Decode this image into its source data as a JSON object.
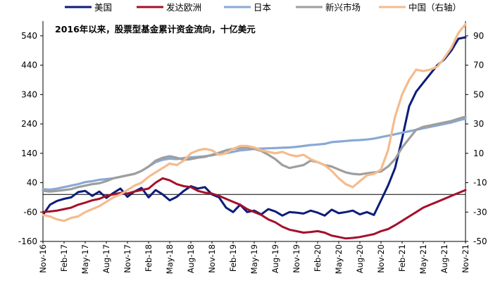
{
  "chart_data": {
    "type": "line",
    "title": "2016年以来，股票型基金累计资金流向，十亿美元",
    "x": [
      "Nov-16",
      "Dec-16",
      "Jan-17",
      "Feb-17",
      "Mar-17",
      "Apr-17",
      "May-17",
      "Jun-17",
      "Jul-17",
      "Aug-17",
      "Sep-17",
      "Oct-17",
      "Nov-17",
      "Dec-17",
      "Jan-18",
      "Feb-18",
      "Mar-18",
      "Apr-18",
      "May-18",
      "Jun-18",
      "Jul-18",
      "Aug-18",
      "Sep-18",
      "Oct-18",
      "Nov-18",
      "Dec-18",
      "Jan-19",
      "Feb-19",
      "Mar-19",
      "Apr-19",
      "May-19",
      "Jun-19",
      "Jul-19",
      "Aug-19",
      "Sep-19",
      "Oct-19",
      "Nov-19",
      "Dec-19",
      "Jan-20",
      "Feb-20",
      "Mar-20",
      "Apr-20",
      "May-20",
      "Jun-20",
      "Jul-20",
      "Aug-20",
      "Sep-20",
      "Oct-20",
      "Nov-20",
      "Dec-20",
      "Jan-21",
      "Feb-21",
      "Mar-21",
      "Apr-21",
      "May-21",
      "Jun-21",
      "Jul-21",
      "Aug-21",
      "Sep-21",
      "Oct-21",
      "Nov-21"
    ],
    "x_tick_labels": [
      "Nov-16",
      "Feb-17",
      "May-17",
      "Aug-17",
      "Nov-17",
      "Feb-18",
      "May-18",
      "Aug-18",
      "Nov-18",
      "Feb-19",
      "May-19",
      "Aug-19",
      "Nov-19",
      "Feb-20",
      "May-20",
      "Aug-20",
      "Nov-20",
      "Feb-21",
      "May-21",
      "Aug-21",
      "Nov-21"
    ],
    "y_left": {
      "range": [
        -160,
        590
      ],
      "ticks": [
        540,
        440,
        340,
        240,
        140,
        40,
        -60,
        -160
      ]
    },
    "y_right": {
      "range": [
        -50,
        100
      ],
      "ticks": [
        90,
        70,
        50,
        30,
        10,
        -10,
        -30,
        -50
      ]
    },
    "zero_line": true,
    "legend_position": "top",
    "series": [
      {
        "name": "美国",
        "axis": "left",
        "color": "#0b1d7a",
        "values": [
          -70,
          -35,
          -22,
          -15,
          -10,
          8,
          12,
          -5,
          10,
          -12,
          5,
          20,
          -8,
          10,
          22,
          -10,
          15,
          0,
          -20,
          -8,
          12,
          28,
          20,
          25,
          0,
          -10,
          -45,
          -60,
          -35,
          -60,
          -55,
          -68,
          -50,
          -58,
          -72,
          -60,
          -62,
          -65,
          -55,
          -62,
          -72,
          -52,
          -64,
          -60,
          -55,
          -68,
          -60,
          -70,
          -20,
          30,
          90,
          190,
          300,
          350,
          380,
          410,
          440,
          460,
          490,
          530,
          535
        ]
      },
      {
        "name": "发达欧洲",
        "axis": "left",
        "color": "#a4102a",
        "values": [
          -60,
          -58,
          -55,
          -50,
          -45,
          -35,
          -28,
          -20,
          -15,
          -5,
          0,
          5,
          3,
          10,
          15,
          20,
          40,
          55,
          48,
          35,
          28,
          25,
          12,
          6,
          3,
          -5,
          -15,
          -25,
          -35,
          -50,
          -60,
          -70,
          -85,
          -95,
          -110,
          -120,
          -125,
          -130,
          -128,
          -125,
          -130,
          -140,
          -145,
          -150,
          -148,
          -145,
          -140,
          -135,
          -125,
          -118,
          -105,
          -90,
          -75,
          -60,
          -45,
          -35,
          -25,
          -15,
          -5,
          5,
          15
        ]
      },
      {
        "name": "日本",
        "axis": "left",
        "color": "#89a9d4",
        "values": [
          18,
          16,
          20,
          25,
          30,
          35,
          42,
          45,
          50,
          52,
          55,
          60,
          65,
          70,
          80,
          95,
          110,
          118,
          122,
          120,
          124,
          126,
          128,
          130,
          133,
          138,
          140,
          145,
          150,
          152,
          155,
          156,
          157,
          158,
          159,
          160,
          162,
          165,
          168,
          170,
          172,
          178,
          180,
          182,
          184,
          185,
          187,
          190,
          195,
          200,
          205,
          210,
          215,
          220,
          225,
          230,
          235,
          240,
          245,
          252,
          258
        ]
      },
      {
        "name": "新兴市场",
        "axis": "left",
        "color": "#9e9e9e",
        "values": [
          12,
          10,
          12,
          15,
          18,
          25,
          30,
          35,
          38,
          45,
          55,
          60,
          65,
          70,
          80,
          95,
          115,
          125,
          130,
          125,
          118,
          120,
          125,
          128,
          135,
          142,
          150,
          155,
          158,
          160,
          155,
          148,
          135,
          120,
          100,
          90,
          95,
          100,
          115,
          110,
          100,
          95,
          85,
          75,
          70,
          68,
          72,
          75,
          78,
          95,
          120,
          160,
          190,
          220,
          230,
          235,
          240,
          245,
          250,
          258,
          265
        ]
      },
      {
        "name": "中国（右轴）",
        "axis": "right",
        "color": "#f5bb8d",
        "values": [
          -32,
          -33,
          -35,
          -36,
          -34,
          -33,
          -30,
          -28,
          -26,
          -23,
          -20,
          -18,
          -15,
          -12,
          -10,
          -6,
          -3,
          0,
          3,
          2,
          5,
          10,
          12,
          13,
          12,
          9,
          10,
          13,
          15,
          15,
          14,
          12,
          11,
          10,
          11,
          9,
          8,
          9,
          6,
          4,
          2,
          -2,
          -7,
          -11,
          -13,
          -9,
          -5,
          -4,
          -1,
          12,
          35,
          50,
          60,
          67,
          66,
          67,
          69,
          75,
          82,
          92,
          98
        ]
      }
    ]
  }
}
